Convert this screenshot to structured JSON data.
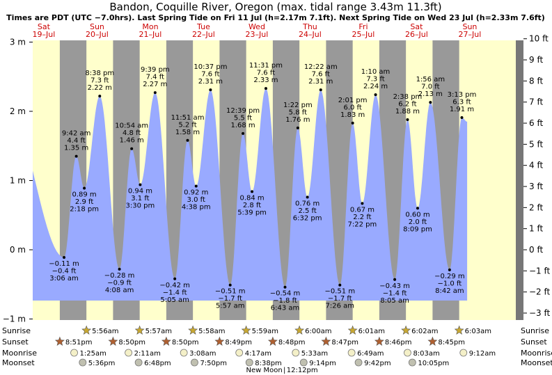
{
  "chart_data": {
    "type": "area",
    "title": "Bandon, Coquille River, Oregon (max. tidal range 3.43m 11.3ft)",
    "subtitle": "Times are PDT (UTC −7.0hrs). Last Spring Tide on Fri 11 Jul (h=2.17m 7.1ft). Next Spring Tide on Wed 23 Jul (h=2.33m 7.6ft)",
    "days": [
      {
        "dow": "Sat",
        "date": "19–Jul"
      },
      {
        "dow": "Sun",
        "date": "20–Jul"
      },
      {
        "dow": "Mon",
        "date": "21–Jul"
      },
      {
        "dow": "Tue",
        "date": "22–Jul"
      },
      {
        "dow": "Wed",
        "date": "23–Jul"
      },
      {
        "dow": "Thu",
        "date": "24–Jul"
      },
      {
        "dow": "Fri",
        "date": "25–Jul"
      },
      {
        "dow": "Sat",
        "date": "26–Jul"
      },
      {
        "dow": "Sun",
        "date": "27–Jul"
      }
    ],
    "y_left": {
      "unit": "m",
      "ticks": [
        -1,
        0,
        1,
        2,
        3
      ],
      "tick_labels": [
        "−1 m",
        "0 m",
        "1 m",
        "2 m",
        "3 m"
      ],
      "range": [
        -1.05,
        3.0
      ]
    },
    "y_right": {
      "unit": "ft",
      "ticks": [
        -3,
        -2,
        -1,
        0,
        1,
        2,
        3,
        4,
        5,
        6,
        7,
        8,
        9,
        10
      ],
      "tick_labels": [
        "−3 ft",
        "−2 ft",
        "−1 ft",
        "0 ft",
        "1 ft",
        "2 ft",
        "3 ft",
        "4 ft",
        "5 ft",
        "6 ft",
        "7 ft",
        "8 ft",
        "9 ft",
        "10 ft"
      ]
    },
    "night": [
      [
        0.8,
        1.3
      ],
      [
        1.8,
        2.3
      ],
      [
        2.8,
        3.3
      ],
      [
        3.8,
        4.3
      ],
      [
        4.8,
        5.3
      ],
      [
        5.8,
        6.3
      ],
      [
        6.8,
        7.3
      ],
      [
        7.8,
        8.3
      ]
    ],
    "tides": [
      {
        "day": -0.22,
        "h": 2.15,
        "labeled": false
      },
      {
        "day": 0.88,
        "h": -0.11,
        "time": "3:06 am",
        "m": "−0.11 m",
        "ft": "−0.4 ft",
        "type": "low"
      },
      {
        "day": 1.11,
        "h": 1.35,
        "time": "9:42 am",
        "m": "1.35 m",
        "ft": "4.4 ft",
        "type": "high"
      },
      {
        "day": 1.26,
        "h": 0.89,
        "time": "2:18 pm",
        "m": "0.89 m",
        "ft": "2.9 ft",
        "type": "low"
      },
      {
        "day": 1.55,
        "h": 2.22,
        "time": "8:38 pm",
        "m": "2.22 m",
        "ft": "7.3 ft",
        "type": "high"
      },
      {
        "day": 1.92,
        "h": -0.28,
        "time": "4:08 am",
        "m": "−0.28 m",
        "ft": "−0.9 ft",
        "type": "low"
      },
      {
        "day": 2.15,
        "h": 1.46,
        "time": "10:54 am",
        "m": "1.46 m",
        "ft": "4.8 ft",
        "type": "high"
      },
      {
        "day": 2.31,
        "h": 0.94,
        "time": "3:30 pm",
        "m": "0.94 m",
        "ft": "3.1 ft",
        "type": "low"
      },
      {
        "day": 2.59,
        "h": 2.27,
        "time": "9:39 pm",
        "m": "2.27 m",
        "ft": "7.4 ft",
        "type": "high"
      },
      {
        "day": 2.96,
        "h": -0.42,
        "time": "5:05 am",
        "m": "−0.42 m",
        "ft": "−1.4 ft",
        "type": "low"
      },
      {
        "day": 3.2,
        "h": 1.58,
        "time": "11:51 am",
        "m": "1.58 m",
        "ft": "5.2 ft",
        "type": "high"
      },
      {
        "day": 3.36,
        "h": 0.92,
        "time": "4:38 pm",
        "m": "0.92 m",
        "ft": "3.0 ft",
        "type": "low"
      },
      {
        "day": 3.63,
        "h": 2.31,
        "time": "10:37 pm",
        "m": "2.31 m",
        "ft": "7.6 ft",
        "type": "high"
      },
      {
        "day": 4.0,
        "h": -0.51,
        "time": "5:57 am",
        "m": "−0.51 m",
        "ft": "−1.7 ft",
        "type": "low"
      },
      {
        "day": 4.24,
        "h": 1.68,
        "time": "12:39 pm",
        "m": "1.68 m",
        "ft": "5.5 ft",
        "type": "high"
      },
      {
        "day": 4.41,
        "h": 0.84,
        "time": "5:39 pm",
        "m": "0.84 m",
        "ft": "2.8 ft",
        "type": "low"
      },
      {
        "day": 4.67,
        "h": 2.33,
        "time": "11:31 pm",
        "m": "2.33 m",
        "ft": "7.6 ft",
        "type": "high"
      },
      {
        "day": 5.03,
        "h": -0.54,
        "time": "6:43 am",
        "m": "−0.54 m",
        "ft": "−1.8 ft",
        "type": "low"
      },
      {
        "day": 5.27,
        "h": 1.76,
        "time": "1:22 pm",
        "m": "1.76 m",
        "ft": "5.8 ft",
        "type": "high"
      },
      {
        "day": 5.45,
        "h": 0.76,
        "time": "6:32 pm",
        "m": "0.76 m",
        "ft": "2.5 ft",
        "type": "low"
      },
      {
        "day": 5.7,
        "h": 2.31,
        "time": "12:22 am",
        "m": "2.31 m",
        "ft": "7.6 ft",
        "type": "high"
      },
      {
        "day": 6.06,
        "h": -0.51,
        "time": "7:26 am",
        "m": "−0.51 m",
        "ft": "−1.7 ft",
        "type": "low"
      },
      {
        "day": 6.3,
        "h": 1.83,
        "time": "2:01 pm",
        "m": "1.83 m",
        "ft": "6.0 ft",
        "type": "high"
      },
      {
        "day": 6.48,
        "h": 0.67,
        "time": "7:22 pm",
        "m": "0.67 m",
        "ft": "2.2 ft",
        "type": "low"
      },
      {
        "day": 6.73,
        "h": 2.24,
        "time": "1:10 am",
        "m": "2.24 m",
        "ft": "7.3 ft",
        "type": "high"
      },
      {
        "day": 7.09,
        "h": -0.43,
        "time": "8:05 am",
        "m": "−0.43 m",
        "ft": "−1.4 ft",
        "type": "low"
      },
      {
        "day": 7.33,
        "h": 1.88,
        "time": "2:38 pm",
        "m": "1.88 m",
        "ft": "6.2 ft",
        "type": "high"
      },
      {
        "day": 7.52,
        "h": 0.6,
        "time": "8:09 pm",
        "m": "0.60 m",
        "ft": "2.0 ft",
        "type": "low"
      },
      {
        "day": 7.76,
        "h": 2.13,
        "time": "1:56 am",
        "m": "2.13 m",
        "ft": "7.0 ft",
        "type": "high"
      },
      {
        "day": 8.12,
        "h": -0.29,
        "time": "8:42 am",
        "m": "−0.29 m",
        "ft": "−1.0 ft",
        "type": "low"
      },
      {
        "day": 8.35,
        "h": 1.91,
        "time": "3:13 pm",
        "m": "1.91 m",
        "ft": "6.3 ft",
        "type": "high"
      },
      {
        "day": 8.45,
        "h": 1.85,
        "labeled": false
      }
    ],
    "rows": [
      {
        "key": "sunrise",
        "label": "Sunrise",
        "icon": "sunrise-icon",
        "color": "#c8a832",
        "events": [
          {
            "day": 1.3,
            "time": "5:56am"
          },
          {
            "day": 2.3,
            "time": "5:57am"
          },
          {
            "day": 3.3,
            "time": "5:58am"
          },
          {
            "day": 4.3,
            "time": "5:59am"
          },
          {
            "day": 5.3,
            "time": "6:00am"
          },
          {
            "day": 6.3,
            "time": "6:01am"
          },
          {
            "day": 7.3,
            "time": "6:02am"
          },
          {
            "day": 8.3,
            "time": "6:03am"
          }
        ]
      },
      {
        "key": "sunset",
        "label": "Sunset",
        "icon": "sunset-icon",
        "color": "#b06030",
        "events": [
          {
            "day": 0.8,
            "time": "8:51pm"
          },
          {
            "day": 1.8,
            "time": "8:50pm"
          },
          {
            "day": 2.8,
            "time": "8:50pm"
          },
          {
            "day": 3.8,
            "time": "8:49pm"
          },
          {
            "day": 4.8,
            "time": "8:48pm"
          },
          {
            "day": 5.8,
            "time": "8:47pm"
          },
          {
            "day": 6.8,
            "time": "8:46pm"
          },
          {
            "day": 7.8,
            "time": "8:45pm"
          }
        ]
      },
      {
        "key": "moonrise",
        "label": "Moonrise",
        "icon": "moonrise-icon",
        "color": "#f4f0c8",
        "events": [
          {
            "day": 1.07,
            "time": "1:25am"
          },
          {
            "day": 2.09,
            "time": "2:11am"
          },
          {
            "day": 3.13,
            "time": "3:08am"
          },
          {
            "day": 4.17,
            "time": "4:17am"
          },
          {
            "day": 5.23,
            "time": "5:33am"
          },
          {
            "day": 6.28,
            "time": "6:49am"
          },
          {
            "day": 7.33,
            "time": "8:03am"
          },
          {
            "day": 8.38,
            "time": "9:12am"
          }
        ]
      },
      {
        "key": "moonset",
        "label": "Moonset",
        "icon": "moonset-icon",
        "color": "#c0c0b0",
        "events": [
          {
            "day": 1.23,
            "time": "5:36pm"
          },
          {
            "day": 2.28,
            "time": "6:48pm"
          },
          {
            "day": 3.33,
            "time": "7:50pm"
          },
          {
            "day": 4.36,
            "time": "8:38pm"
          },
          {
            "day": 5.38,
            "time": "9:14pm"
          },
          {
            "day": 6.41,
            "time": "9:42pm"
          },
          {
            "day": 7.42,
            "time": "10:05pm"
          }
        ]
      }
    ],
    "moon_phase": {
      "label": "New Moon",
      "time": "12:12pm",
      "day": 5.02
    }
  },
  "colors": {
    "day_bg": "#ffffcc",
    "night_bg": "#999999",
    "water": "#99aaff",
    "border_bg": "#777777",
    "day_label": "#cc0000"
  }
}
